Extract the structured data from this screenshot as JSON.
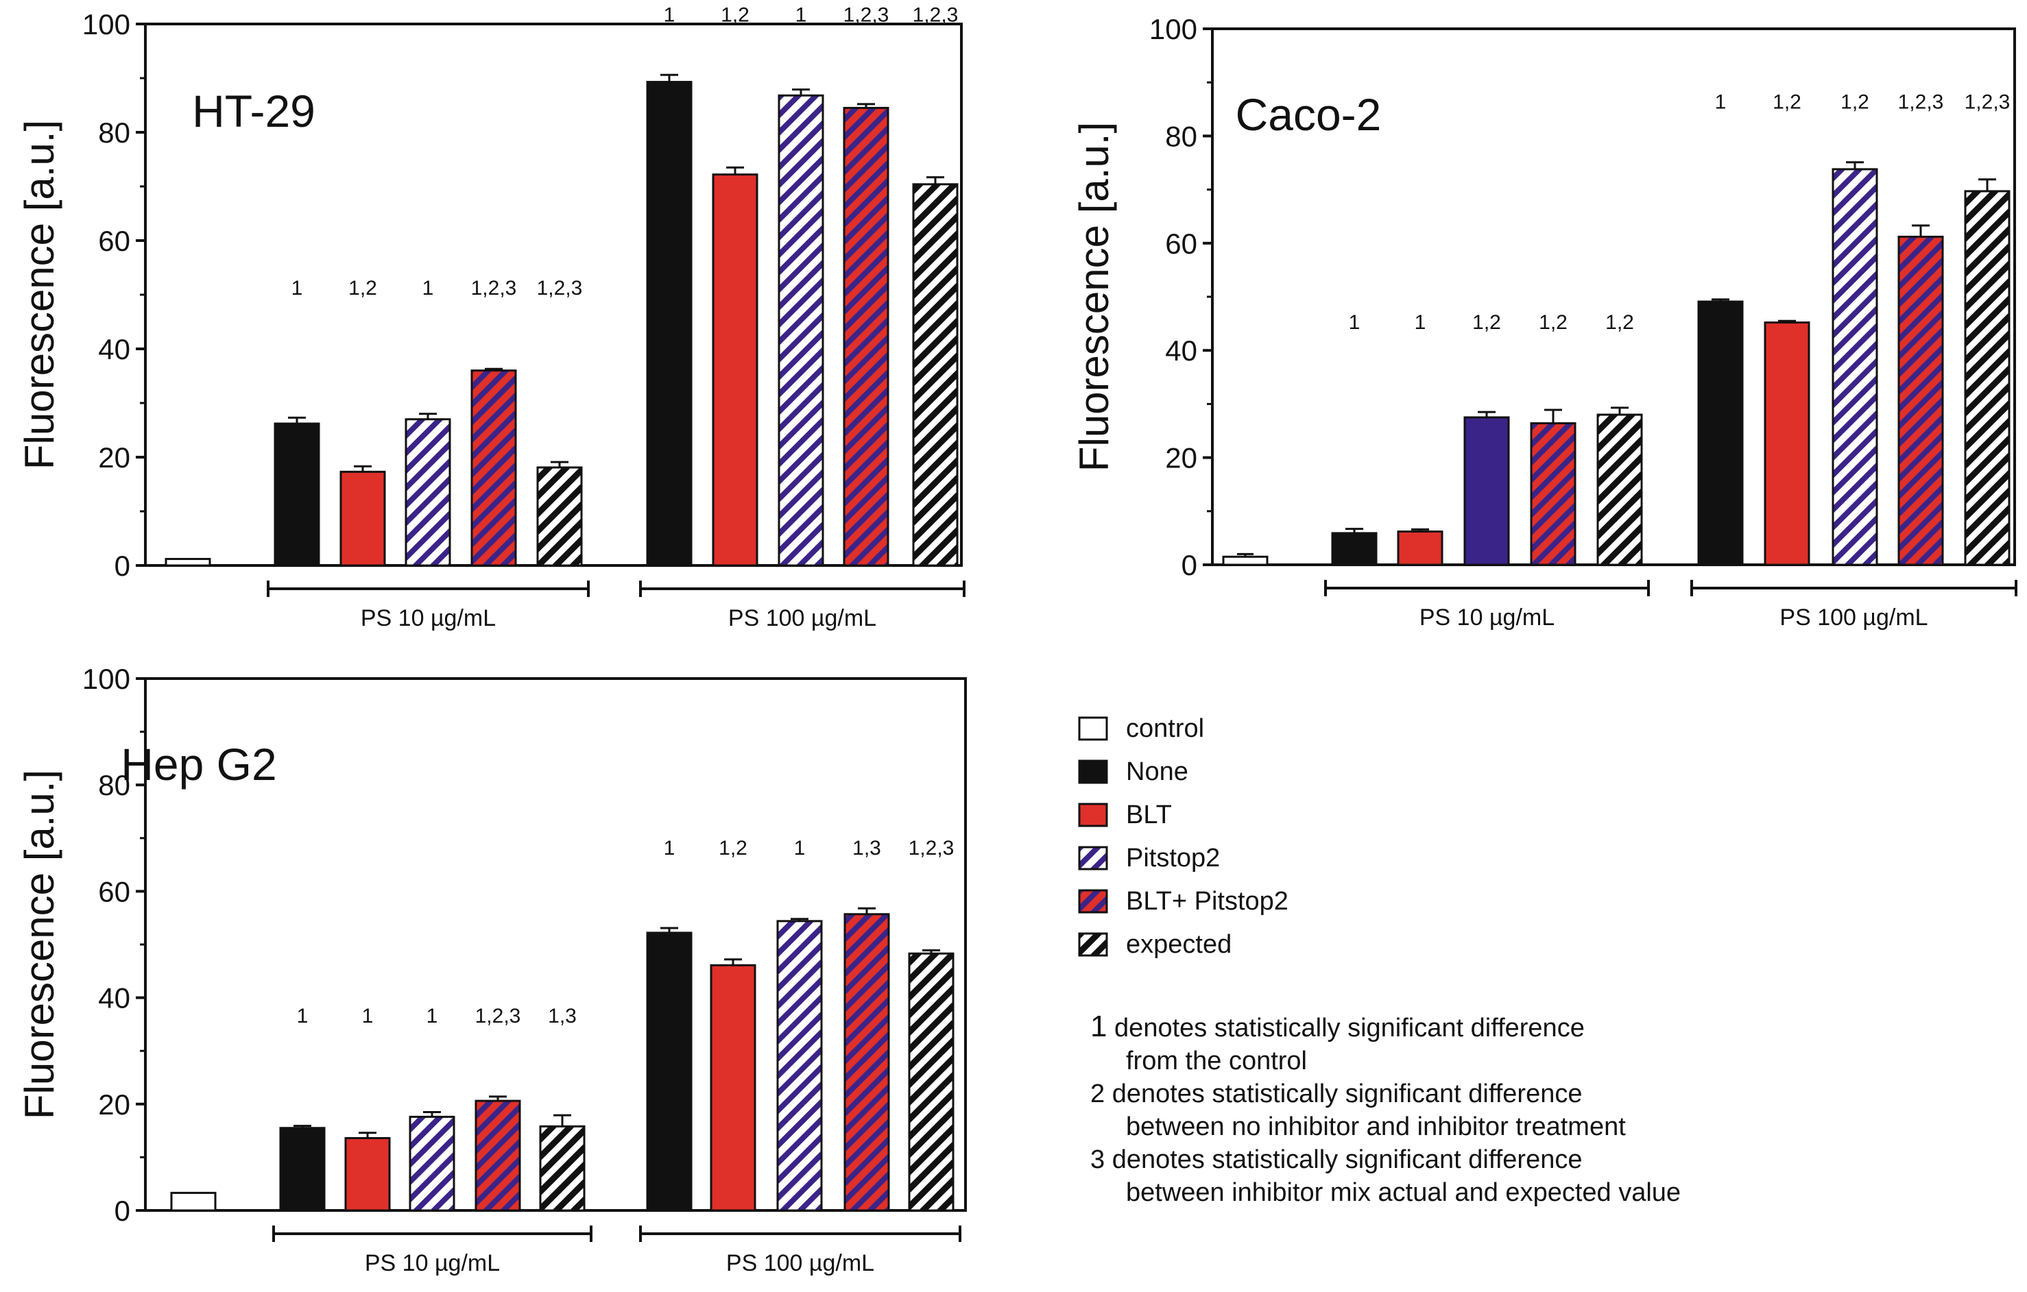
{
  "chart_data": [
    {
      "type": "bar",
      "title": "HT-29",
      "ylabel": "Fluorescence [a.u.]",
      "ylim": [
        0,
        100
      ],
      "yticks": [
        "0",
        "20",
        "40",
        "60",
        "80",
        "100"
      ],
      "groups": [
        "PS 10 µg/mL",
        "PS 100 µg/mL"
      ],
      "control": {
        "value": 1.2,
        "error": 0
      },
      "series": [
        {
          "name": "None",
          "values": [
            26.2,
            89.3
          ],
          "errors": [
            1.1,
            1.3
          ],
          "annotations": [
            "1",
            "1"
          ]
        },
        {
          "name": "BLT",
          "values": [
            17.3,
            72.2
          ],
          "errors": [
            1.0,
            1.3
          ],
          "annotations": [
            "1,2",
            "1,2"
          ]
        },
        {
          "name": "Pitstop2",
          "values": [
            27.0,
            86.8
          ],
          "errors": [
            1.0,
            1.1
          ],
          "annotations": [
            "1",
            "1"
          ]
        },
        {
          "name": "BLT+ Pitstop2",
          "values": [
            36.0,
            84.5
          ],
          "errors": [
            0.3,
            0.7
          ],
          "annotations": [
            "1,2,3",
            "1,2,3"
          ]
        },
        {
          "name": "expected",
          "values": [
            18.1,
            70.4
          ],
          "errors": [
            1.0,
            1.3
          ],
          "annotations": [
            "1,2,3",
            "1,2,3"
          ]
        }
      ]
    },
    {
      "type": "bar",
      "title": "Caco-2",
      "ylabel": "Fluorescence [a.u.]",
      "ylim": [
        0,
        100
      ],
      "yticks": [
        "0",
        "20",
        "40",
        "60",
        "80",
        "100"
      ],
      "groups": [
        "PS 10 µg/mL",
        "PS 100 µg/mL"
      ],
      "control": {
        "value": 1.5,
        "error": 0.5
      },
      "series": [
        {
          "name": "None",
          "values": [
            5.9,
            49.1
          ],
          "errors": [
            0.8,
            0.4
          ],
          "annotations": [
            "1",
            "1"
          ]
        },
        {
          "name": "BLT",
          "values": [
            6.2,
            45.2
          ],
          "errors": [
            0.4,
            0.3
          ],
          "annotations": [
            "1",
            "1,2"
          ]
        },
        {
          "name": "Pitstop2",
          "values": [
            27.5,
            73.8
          ],
          "errors": [
            1.0,
            1.3
          ],
          "annotations": [
            "1,2",
            "1,2"
          ],
          "solid_first": true
        },
        {
          "name": "BLT+ Pitstop2",
          "values": [
            26.4,
            61.2
          ],
          "errors": [
            2.5,
            2.1
          ],
          "annotations": [
            "1,2",
            "1,2,3"
          ]
        },
        {
          "name": "expected",
          "values": [
            28.0,
            69.7
          ],
          "errors": [
            1.3,
            2.2
          ],
          "annotations": [
            "1,2",
            "1,2,3"
          ]
        }
      ]
    },
    {
      "type": "bar",
      "title": "Hep G2",
      "ylabel": "Fluorescence [a.u.]",
      "ylim": [
        0,
        100
      ],
      "yticks": [
        "0",
        "20",
        "40",
        "60",
        "80",
        "100"
      ],
      "groups": [
        "PS 10 µg/mL",
        "PS 100 µg/mL"
      ],
      "control": {
        "value": 3.3,
        "error": 0
      },
      "series": [
        {
          "name": "None",
          "values": [
            15.5,
            52.2
          ],
          "errors": [
            0.4,
            0.9
          ],
          "annotations": [
            "1",
            "1"
          ]
        },
        {
          "name": "BLT",
          "values": [
            13.6,
            46.1
          ],
          "errors": [
            1.0,
            1.1
          ],
          "annotations": [
            "1",
            "1,2"
          ]
        },
        {
          "name": "Pitstop2",
          "values": [
            17.6,
            54.4
          ],
          "errors": [
            0.9,
            0.4
          ],
          "annotations": [
            "1",
            "1"
          ]
        },
        {
          "name": "BLT+ Pitstop2",
          "values": [
            20.6,
            55.7
          ],
          "errors": [
            0.8,
            1.1
          ],
          "annotations": [
            "1,2,3",
            "1,3"
          ]
        },
        {
          "name": "expected",
          "values": [
            15.8,
            48.3
          ],
          "errors": [
            2.1,
            0.6
          ],
          "annotations": [
            "1,3",
            "1,2,3"
          ]
        }
      ]
    }
  ],
  "legend": {
    "items": [
      {
        "key": "control",
        "label": "control"
      },
      {
        "key": "none",
        "label": "None"
      },
      {
        "key": "blt",
        "label": "BLT"
      },
      {
        "key": "pitstop2",
        "label": "Pitstop2"
      },
      {
        "key": "blt_pitstop2",
        "label": "BLT+ Pitstop2"
      },
      {
        "key": "expected",
        "label": "expected"
      }
    ]
  },
  "notes": {
    "n1_num": "1",
    "n1_a": "denotes statistically significant difference",
    "n1_b": "from the control",
    "n2_a": "2 denotes statistically significant difference",
    "n2_b": "between no inhibitor and inhibitor treatment",
    "n3_a": "3 denotes statistically significant difference",
    "n3_b": "between inhibitor mix actual and expected value"
  },
  "colors": {
    "none": "#111111",
    "blt": "#e0302a",
    "pitstop2_stripe": "#3b2488",
    "blt_pitstop2_base": "#e0302a",
    "blt_pitstop2_stripe": "#3b2488",
    "expected_stripe": "#111111",
    "control": "#ffffff"
  }
}
